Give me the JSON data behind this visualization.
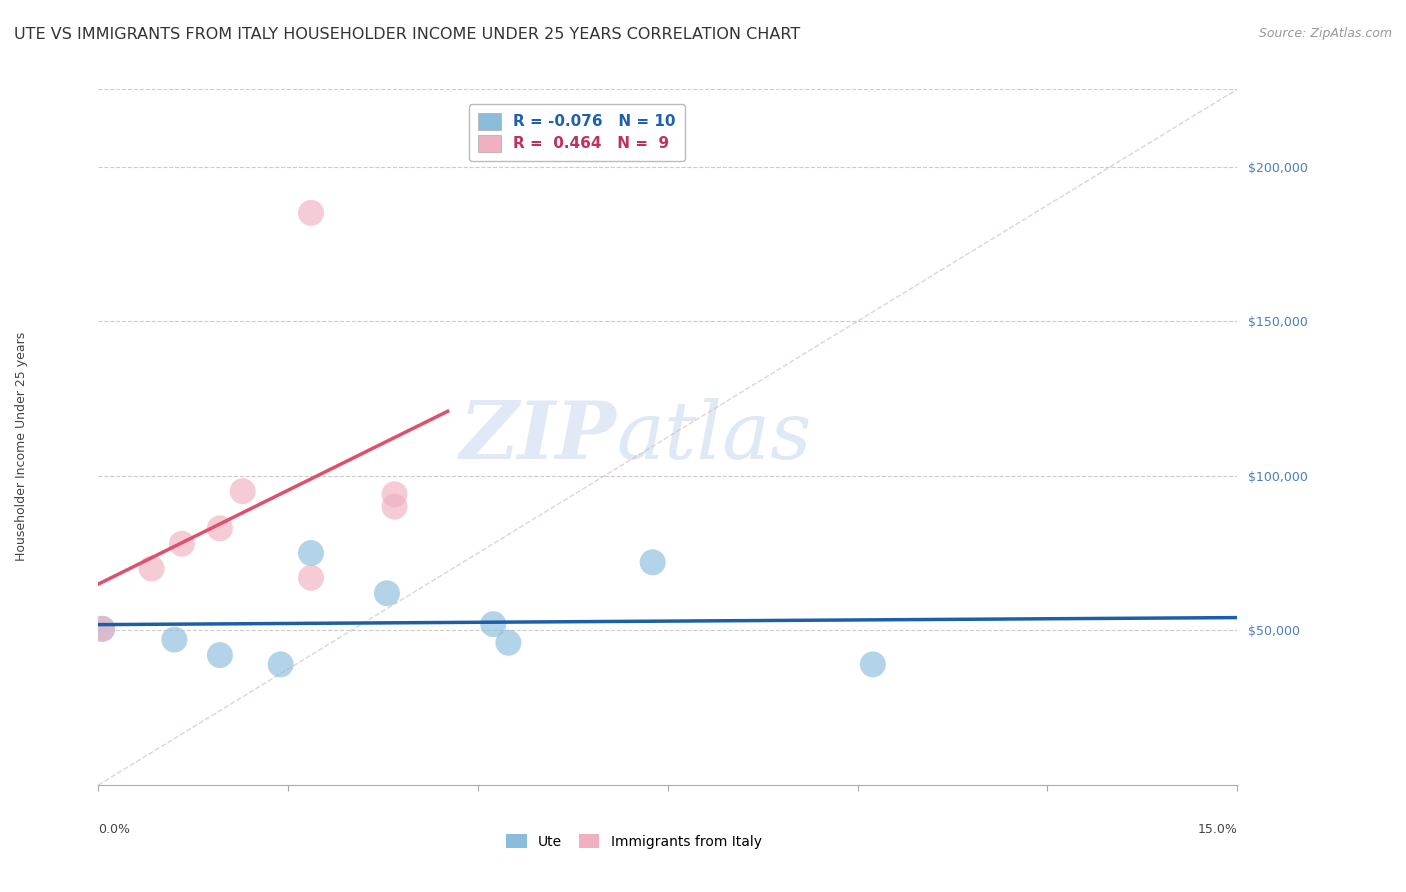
{
  "title": "UTE VS IMMIGRANTS FROM ITALY HOUSEHOLDER INCOME UNDER 25 YEARS CORRELATION CHART",
  "source": "Source: ZipAtlas.com",
  "ylabel": "Householder Income Under 25 years",
  "x_min": 0.0,
  "x_max": 0.15,
  "y_min": 0,
  "y_max": 225000,
  "yticks": [
    50000,
    100000,
    150000,
    200000
  ],
  "ytick_labels": [
    "$50,000",
    "$100,000",
    "$150,000",
    "$200,000"
  ],
  "legend_bottom": [
    "Ute",
    "Immigrants from Italy"
  ],
  "legend_top_entries": [
    {
      "label": "R = -0.076   N = 10",
      "color": "#a8c4e0"
    },
    {
      "label": "R =  0.464   N =  9",
      "color": "#f0b8c4"
    }
  ],
  "ute_points_x": [
    0.0005,
    0.01,
    0.016,
    0.024,
    0.028,
    0.038,
    0.052,
    0.054,
    0.073,
    0.102
  ],
  "ute_points_y": [
    50500,
    47000,
    42000,
    39000,
    75000,
    62000,
    52000,
    46000,
    72000,
    39000
  ],
  "italy_points_x": [
    0.0005,
    0.007,
    0.011,
    0.016,
    0.019,
    0.028,
    0.039,
    0.039,
    0.028
  ],
  "italy_points_y": [
    50500,
    70000,
    78000,
    83000,
    95000,
    67000,
    94000,
    90000,
    185000
  ],
  "ute_color": "#8bbcdc",
  "ute_line_color": "#1a5fa8",
  "italy_color": "#f0b0c0",
  "italy_line_color": "#e0506a",
  "diagonal_color": "#d8c0c0",
  "background_color": "#ffffff",
  "watermark_zip": "ZIP",
  "watermark_atlas": "atlas",
  "title_fontsize": 11.5,
  "axis_label_fontsize": 9,
  "tick_fontsize": 9,
  "legend_fontsize": 11,
  "source_fontsize": 9
}
